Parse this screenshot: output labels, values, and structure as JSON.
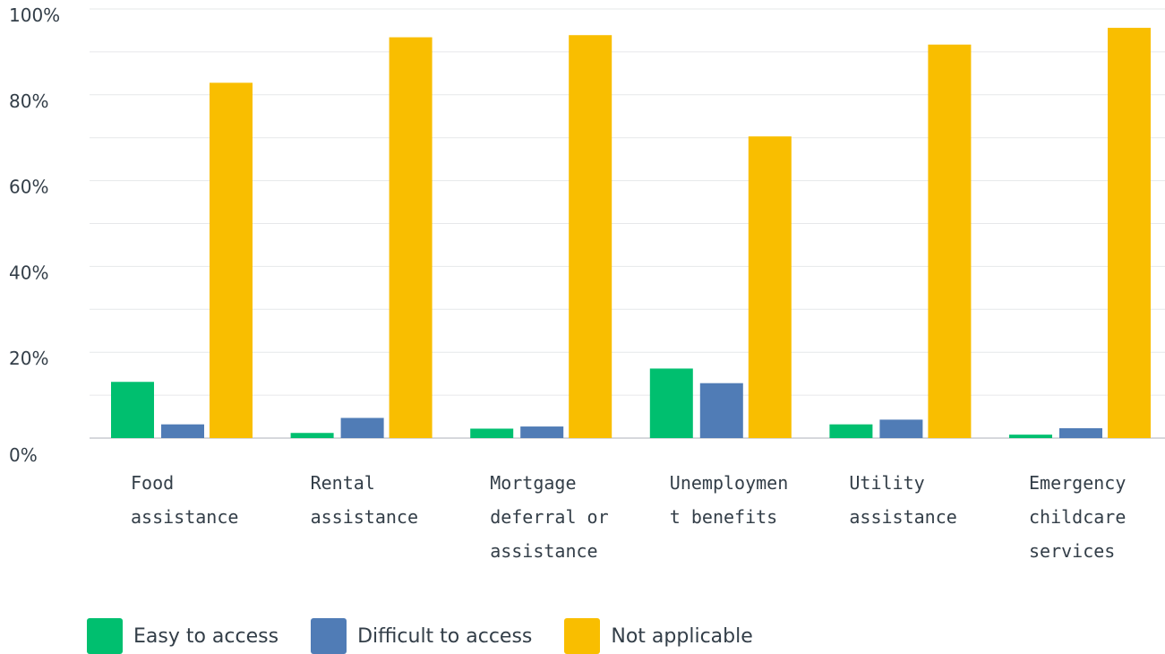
{
  "chart_data": {
    "type": "bar",
    "title": "",
    "xlabel": "",
    "ylabel": "",
    "ylim": [
      0,
      100
    ],
    "y_ticks": [
      "0%",
      "20%",
      "40%",
      "60%",
      "80%",
      "100%"
    ],
    "y_tick_values": [
      0,
      20,
      40,
      60,
      80,
      100
    ],
    "grid": true,
    "legend_position": "bottom-left",
    "categories": [
      [
        "Food",
        "assistance"
      ],
      [
        "Rental",
        "assistance"
      ],
      [
        "Mortgage",
        "deferral or",
        "assistance"
      ],
      [
        "Unemploymen",
        "t benefits"
      ],
      [
        "Utility",
        "assistance"
      ],
      [
        "Emergency",
        "childcare",
        "services"
      ]
    ],
    "series": [
      {
        "name": "Easy to access",
        "color": "#00bf6f",
        "values": [
          13.1,
          1.2,
          2.2,
          16.2,
          3.2,
          0.8
        ]
      },
      {
        "name": "Difficult to access",
        "color": "#507cb6",
        "values": [
          3.2,
          4.7,
          2.7,
          12.8,
          4.3,
          2.3
        ]
      },
      {
        "name": "Not applicable",
        "color": "#f9be00",
        "values": [
          82.8,
          93.4,
          93.9,
          70.3,
          91.7,
          95.6
        ]
      }
    ]
  }
}
